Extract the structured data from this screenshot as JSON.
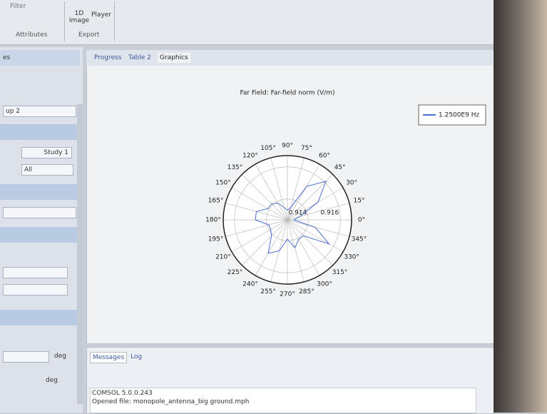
{
  "ribbon": {
    "filter": "Filter",
    "image": "1D Image",
    "player": "Player",
    "attributes": "Attributes",
    "export": "Export"
  },
  "left_panel": {
    "header": "es",
    "group": "up 2",
    "study": "Study 1",
    "all": "All",
    "deg1": "deg",
    "deg2": "deg"
  },
  "tabs": [
    "Progress",
    "Table 2",
    "Graphics"
  ],
  "chart_data": {
    "type": "polar",
    "title": "Far Field: Far-field norm (V/m)",
    "rlim": [
      0.9127,
      0.9167
    ],
    "rticks": [
      0.914,
      0.916
    ],
    "thetaticks": [
      {
        "value": 0,
        "label": "0°"
      },
      {
        "value": 15,
        "label": "15°"
      },
      {
        "value": 30,
        "label": "30°"
      },
      {
        "value": 45,
        "label": "45°"
      },
      {
        "value": 60,
        "label": "60°"
      },
      {
        "value": 75,
        "label": "75°"
      },
      {
        "value": 90,
        "label": "90°"
      },
      {
        "value": 105,
        "label": "105°"
      },
      {
        "value": 120,
        "label": "120°"
      },
      {
        "value": 135,
        "label": "135°"
      },
      {
        "value": 150,
        "label": "150°"
      },
      {
        "value": 165,
        "label": "165°"
      },
      {
        "value": 180,
        "label": "180°"
      },
      {
        "value": 195,
        "label": "195°"
      },
      {
        "value": 210,
        "label": "210°"
      },
      {
        "value": 225,
        "label": "225°"
      },
      {
        "value": 240,
        "label": "240°"
      },
      {
        "value": 255,
        "label": "255°"
      },
      {
        "value": 270,
        "label": "270°"
      },
      {
        "value": 285,
        "label": "285°"
      },
      {
        "value": 300,
        "label": "300°"
      },
      {
        "value": 315,
        "label": "315°"
      },
      {
        "value": 330,
        "label": "330°"
      },
      {
        "value": 345,
        "label": "345°"
      }
    ],
    "x": [
      0,
      15,
      30,
      45,
      60,
      75,
      90,
      105,
      120,
      135,
      150,
      165,
      180,
      195,
      210,
      225,
      240,
      255,
      270,
      285,
      300,
      315,
      330,
      345
    ],
    "series": [
      {
        "name": "1.2500E9 Hz",
        "color": "#4a6fd0",
        "values": [
          0.9131,
          0.9135,
          0.9149,
          0.9161,
          0.9151,
          0.9135,
          0.9133,
          0.9135,
          0.9139,
          0.9141,
          0.9141,
          0.9147,
          0.9147,
          0.9139,
          0.9139,
          0.9141,
          0.9151,
          0.9147,
          0.9139,
          0.9145,
          0.9141,
          0.9141,
          0.9157,
          0.9145
        ]
      }
    ]
  },
  "messages": {
    "tabs": [
      "Messages",
      "Log"
    ],
    "lines": [
      "COMSOL 5.0.0.243",
      "Opened file: monopole_antenna_big ground.mph"
    ]
  }
}
